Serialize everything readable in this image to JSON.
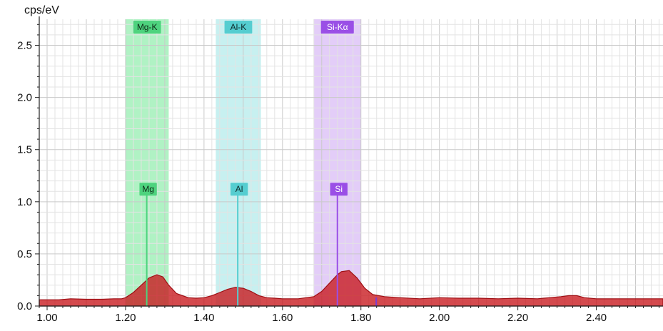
{
  "chart_data": {
    "type": "area",
    "ylabel": "cps/eV",
    "xlim": [
      0.98,
      2.57
    ],
    "ylim": [
      0.0,
      2.75
    ],
    "x_ticks": [
      1.0,
      1.2,
      1.4,
      1.6,
      1.8,
      2.0,
      2.2,
      2.4
    ],
    "x_tick_labels": [
      "1.00",
      "1.20",
      "1.40",
      "1.60",
      "1.80",
      "2.00",
      "2.20",
      "2.40"
    ],
    "y_ticks": [
      0.0,
      0.5,
      1.0,
      1.5,
      2.0,
      2.5
    ],
    "y_tick_labels": [
      "0.0",
      "0.5",
      "1.0",
      "1.5",
      "2.0",
      "2.5"
    ],
    "grid": true,
    "spectrum_color": "#c8171c",
    "spectrum": {
      "x": [
        0.98,
        1.0,
        1.03,
        1.06,
        1.1,
        1.14,
        1.17,
        1.19,
        1.2,
        1.22,
        1.24,
        1.26,
        1.28,
        1.295,
        1.31,
        1.33,
        1.36,
        1.38,
        1.4,
        1.42,
        1.44,
        1.46,
        1.48,
        1.5,
        1.52,
        1.54,
        1.56,
        1.58,
        1.6,
        1.62,
        1.64,
        1.66,
        1.68,
        1.7,
        1.72,
        1.74,
        1.75,
        1.77,
        1.79,
        1.81,
        1.83,
        1.86,
        1.9,
        1.95,
        2.0,
        2.05,
        2.1,
        2.15,
        2.2,
        2.25,
        2.28,
        2.31,
        2.33,
        2.35,
        2.37,
        2.4,
        2.45,
        2.5,
        2.57
      ],
      "y": [
        0.06,
        0.06,
        0.06,
        0.07,
        0.065,
        0.065,
        0.07,
        0.07,
        0.08,
        0.13,
        0.2,
        0.27,
        0.3,
        0.28,
        0.2,
        0.12,
        0.08,
        0.075,
        0.08,
        0.1,
        0.13,
        0.16,
        0.18,
        0.17,
        0.14,
        0.1,
        0.08,
        0.075,
        0.07,
        0.07,
        0.07,
        0.08,
        0.09,
        0.14,
        0.22,
        0.3,
        0.33,
        0.34,
        0.27,
        0.17,
        0.11,
        0.09,
        0.08,
        0.07,
        0.08,
        0.075,
        0.075,
        0.07,
        0.075,
        0.07,
        0.08,
        0.09,
        0.1,
        0.1,
        0.08,
        0.07,
        0.07,
        0.07,
        0.07
      ]
    },
    "element_lines": [
      {
        "line": "Mg-K",
        "symbol": "Mg",
        "energy": 1.254,
        "band": [
          1.2,
          1.31
        ],
        "band_color": "#62e68a",
        "tag_color": "#4ed37e",
        "text_color": "#0d2a16"
      },
      {
        "line": "Al-K",
        "symbol": "Al",
        "energy": 1.486,
        "band": [
          1.43,
          1.545
        ],
        "band_color": "#8fe2e2",
        "tag_color": "#55cdd0",
        "text_color": "#0d2a2a"
      },
      {
        "line": "Si-Kα",
        "symbol": "Si",
        "energy": 1.74,
        "band": [
          1.68,
          1.8
        ],
        "band_color": "#c79cf2",
        "tag_color": "#9a4fe6",
        "text_color": "#ffffff"
      }
    ],
    "marker_height": 1.1,
    "minor_marker": {
      "energy": 1.839,
      "color": "#7a3fd6"
    }
  }
}
